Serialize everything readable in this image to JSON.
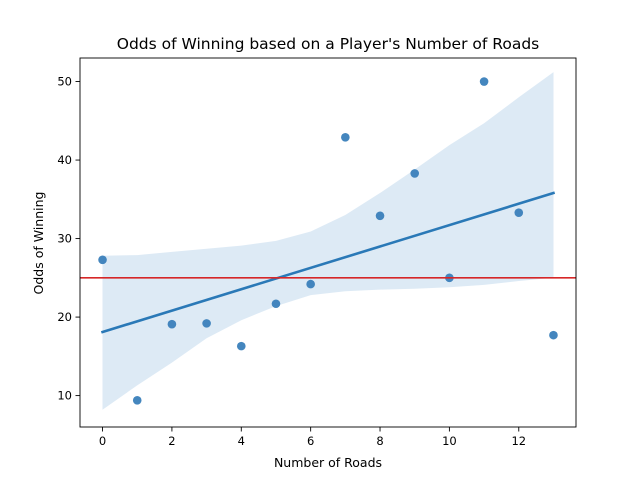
{
  "chart_data": {
    "type": "scatter",
    "title": "Odds of Winning based on a Player's Number of Roads",
    "xlabel": "Number of Roads",
    "ylabel": "Odds of Winning",
    "xlim": [
      -0.65,
      13.65
    ],
    "ylim": [
      6.0,
      53.0
    ],
    "xticks": [
      0,
      2,
      4,
      6,
      8,
      10,
      12
    ],
    "yticks": [
      10,
      20,
      30,
      40,
      50
    ],
    "grid": false,
    "points": [
      {
        "x": 0,
        "y": 27.3
      },
      {
        "x": 1,
        "y": 9.4
      },
      {
        "x": 2,
        "y": 19.1
      },
      {
        "x": 3,
        "y": 19.2
      },
      {
        "x": 4,
        "y": 16.3
      },
      {
        "x": 5,
        "y": 21.7
      },
      {
        "x": 6,
        "y": 24.2
      },
      {
        "x": 7,
        "y": 42.9
      },
      {
        "x": 8,
        "y": 32.9
      },
      {
        "x": 9,
        "y": 38.3
      },
      {
        "x": 10,
        "y": 25.0
      },
      {
        "x": 11,
        "y": 50.0
      },
      {
        "x": 12,
        "y": 33.3
      },
      {
        "x": 13,
        "y": 17.7
      }
    ],
    "regression_line": {
      "x": [
        0,
        13
      ],
      "y": [
        18.1,
        35.8
      ]
    },
    "confidence_band": {
      "x": [
        0,
        1,
        2,
        3,
        4,
        5,
        6,
        7,
        8,
        9,
        10,
        11,
        12,
        13
      ],
      "lower": [
        8.2,
        11.3,
        14.2,
        17.3,
        19.6,
        21.4,
        22.8,
        23.3,
        23.5,
        23.6,
        23.8,
        24.1,
        24.6,
        25.0
      ],
      "upper": [
        27.8,
        27.9,
        28.3,
        28.7,
        29.1,
        29.7,
        30.9,
        33.0,
        35.8,
        38.8,
        41.9,
        44.7,
        48.0,
        51.2
      ]
    },
    "reference_line": {
      "y": 25.0
    },
    "colors": {
      "points": "#3a7fba",
      "regression": "#2a79b7",
      "band": "#c6dcee",
      "reference": "#d62728"
    }
  }
}
